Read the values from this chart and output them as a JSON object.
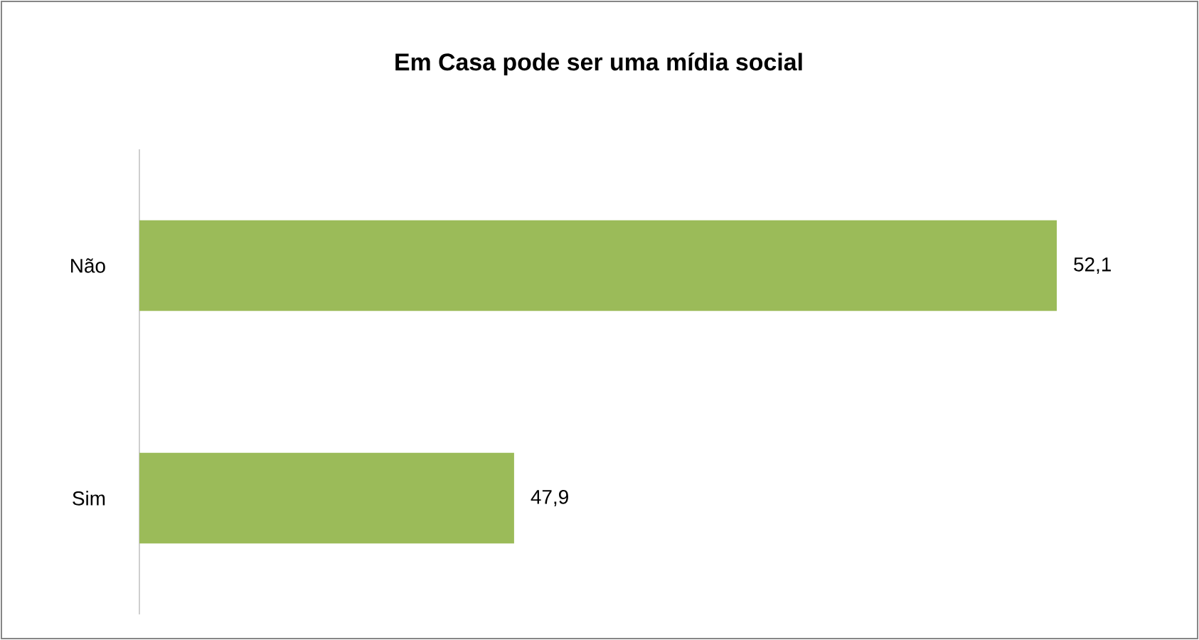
{
  "chart_data": {
    "type": "bar",
    "orientation": "horizontal",
    "title": "Em Casa pode ser uma mídia social",
    "categories": [
      "Não",
      "Sim"
    ],
    "values": [
      52.1,
      47.9
    ],
    "value_labels": [
      "52,1",
      "47,9"
    ],
    "color": "#9bbb59",
    "xlim": [
      45,
      52.1
    ],
    "tick_labels": "y"
  }
}
